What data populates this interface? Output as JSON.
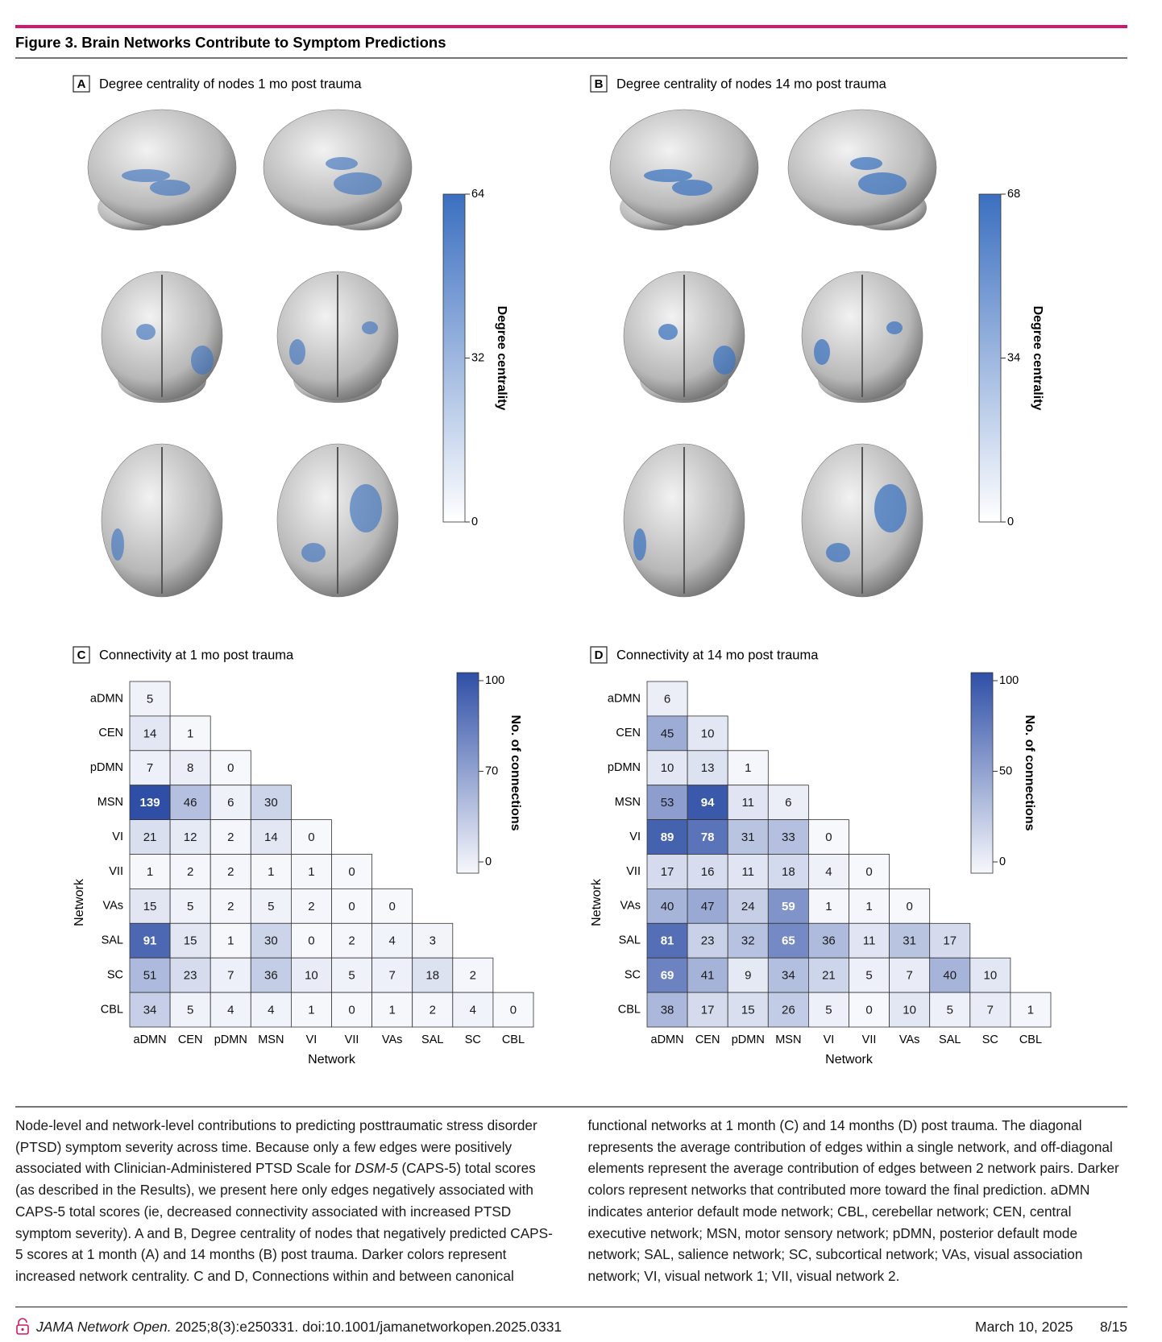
{
  "header": {
    "title": "Figure 3. Brain Networks Contribute to Symptom Predictions"
  },
  "panels": [
    {
      "letter": "A",
      "title": "Degree centrality of nodes 1 mo post trauma",
      "colorbar": {
        "label": "Degree centrality",
        "ticks": [
          0,
          32,
          64
        ]
      }
    },
    {
      "letter": "B",
      "title": "Degree centrality of nodes 14 mo post trauma",
      "colorbar": {
        "label": "Degree centrality",
        "ticks": [
          0,
          34,
          68
        ]
      }
    }
  ],
  "heatmaps": [
    {
      "letter": "C",
      "title": "Connectivity at 1 mo post trauma",
      "row_labels": [
        "aDMN",
        "CEN",
        "pDMN",
        "MSN",
        "VI",
        "VII",
        "VAs",
        "SAL",
        "SC",
        "CBL"
      ],
      "col_labels": [
        "aDMN",
        "CEN",
        "pDMN",
        "MSN",
        "VI",
        "VII",
        "VAs",
        "SAL",
        "SC",
        "CBL"
      ],
      "x_label": "Network",
      "y_label": "Network",
      "colorbar": {
        "label": "No. of connections",
        "ticks": [
          0,
          70,
          100
        ]
      },
      "rows": [
        [
          5
        ],
        [
          14,
          1
        ],
        [
          7,
          8,
          0
        ],
        [
          139,
          46,
          6,
          30
        ],
        [
          21,
          12,
          2,
          14,
          0
        ],
        [
          1,
          2,
          2,
          1,
          1,
          0
        ],
        [
          15,
          5,
          2,
          5,
          2,
          0,
          0
        ],
        [
          91,
          15,
          1,
          30,
          0,
          2,
          4,
          3
        ],
        [
          51,
          23,
          7,
          36,
          10,
          5,
          7,
          18,
          2
        ],
        [
          34,
          5,
          4,
          4,
          1,
          0,
          1,
          2,
          4,
          0
        ]
      ]
    },
    {
      "letter": "D",
      "title": "Connectivity at 14 mo post trauma",
      "row_labels": [
        "aDMN",
        "CEN",
        "pDMN",
        "MSN",
        "VI",
        "VII",
        "VAs",
        "SAL",
        "SC",
        "CBL"
      ],
      "col_labels": [
        "aDMN",
        "CEN",
        "pDMN",
        "MSN",
        "VI",
        "VII",
        "VAs",
        "SAL",
        "SC",
        "CBL"
      ],
      "x_label": "Network",
      "y_label": "Network",
      "colorbar": {
        "label": "No. of connections",
        "ticks": [
          0,
          50,
          100
        ]
      },
      "rows": [
        [
          6
        ],
        [
          45,
          10
        ],
        [
          10,
          13,
          1
        ],
        [
          53,
          94,
          11,
          6
        ],
        [
          89,
          78,
          31,
          33,
          0
        ],
        [
          17,
          16,
          11,
          18,
          4,
          0
        ],
        [
          40,
          47,
          24,
          59,
          1,
          1,
          0
        ],
        [
          81,
          23,
          32,
          65,
          36,
          11,
          31,
          17
        ],
        [
          69,
          41,
          9,
          34,
          21,
          5,
          7,
          40,
          10
        ],
        [
          38,
          17,
          15,
          26,
          5,
          0,
          10,
          5,
          7,
          1
        ]
      ]
    }
  ],
  "caption": {
    "parts": [
      "Node-level and network-level contributions to predicting posttraumatic stress disorder (PTSD) symptom severity across time. Because only a few edges were positively associated with Clinician-Administered PTSD Scale for ",
      "DSM-5",
      " (CAPS-5) total scores (as described in the Results), we present here only edges negatively associated with CAPS-5 total scores (ie, decreased connectivity associated with increased PTSD symptom severity). A and B, Degree centrality of nodes that negatively predicted CAPS-5 scores at 1 month (A) and 14 months (B) post trauma. Darker colors represent increased network centrality. C and D, Connections within and between canonical functional networks at 1 month (C) and 14 months (D) post trauma. The diagonal represents the average contribution of edges within a single network, and off-diagonal elements represent the average contribution of edges between 2 network pairs. Darker colors represent networks that contributed more toward the final prediction. aDMN indicates anterior default mode network; CBL, cerebellar network; CEN, central executive network; MSN, motor sensory network; pDMN, posterior default mode network; SAL, salience network; SC, subcortical network; VAs, visual association network; VI, visual network 1; VII, visual network 2."
    ]
  },
  "footer": {
    "journal": "JAMA Network Open.",
    "citation": " 2025;8(3):e250331. doi:10.1001/jamanetworkopen.2025.0331",
    "date": "March 10, 2025",
    "page": "8/15"
  }
}
